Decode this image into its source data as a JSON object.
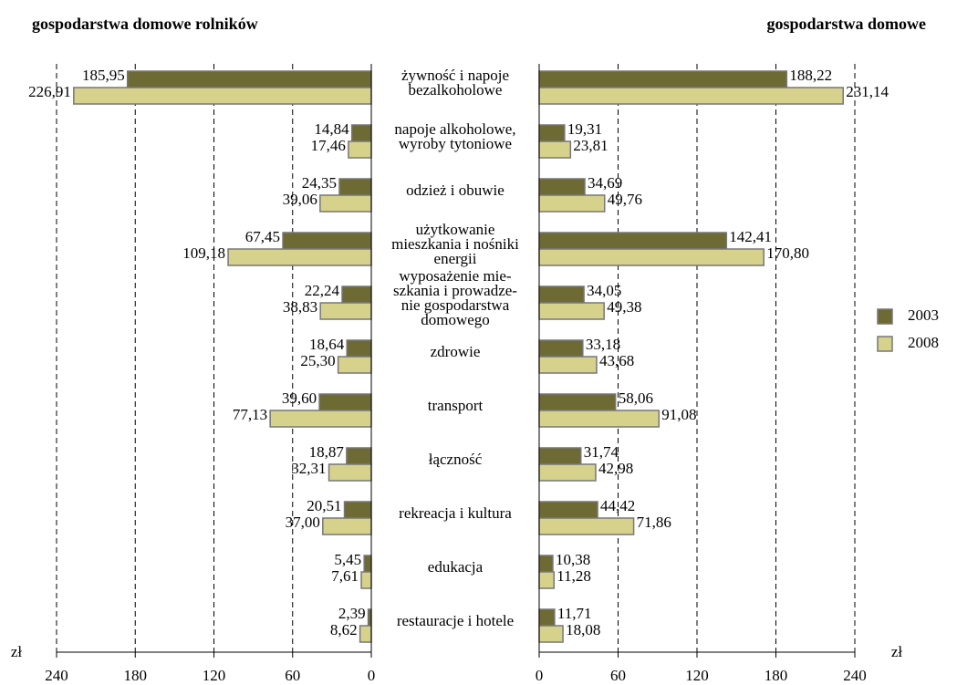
{
  "chart_data": {
    "type": "butterfly",
    "categories": [
      [
        "żywność i napoje",
        "bezalkoholowe"
      ],
      [
        "napoje alkoholowe,",
        "wyroby tytoniowe"
      ],
      [
        "odzież i obuwie"
      ],
      [
        "użytkowanie",
        "mieszkania i nośniki",
        "energii"
      ],
      [
        "wyposażenie mie-",
        "szkania i prowadze-",
        "nie gospodarstwa",
        "domowego"
      ],
      [
        "zdrowie"
      ],
      [
        "transport"
      ],
      [
        "łączność"
      ],
      [
        "rekreacja i kultura"
      ],
      [
        "edukacja"
      ],
      [
        "restauracje i hotele"
      ]
    ],
    "series": [
      {
        "name": "2003",
        "color": "#6e6a33"
      },
      {
        "name": "2008",
        "color": "#d6d28c"
      }
    ],
    "panels": [
      {
        "title": "gospodarstwa domowe rolników",
        "x_label": "zł",
        "xlim": [
          240,
          0
        ],
        "xticks": [
          240,
          180,
          120,
          60,
          0
        ],
        "series": [
          {
            "values": [
              185.95,
              14.84,
              24.35,
              67.45,
              22.24,
              18.64,
              39.6,
              18.87,
              20.51,
              5.45,
              2.39
            ],
            "value_labels": [
              "185,95",
              "14,84",
              "24,35",
              "67,45",
              "22,24",
              "18,64",
              "39,60",
              "18,87",
              "20,51",
              "5,45",
              "2,39"
            ]
          },
          {
            "values": [
              226.91,
              17.46,
              39.06,
              109.18,
              38.83,
              25.3,
              77.13,
              32.31,
              37.0,
              7.61,
              8.62
            ],
            "value_labels": [
              "226,91",
              "17,46",
              "39,06",
              "109,18",
              "38,83",
              "25,30",
              "77,13",
              "32,31",
              "37,00",
              "7,61",
              "8,62"
            ]
          }
        ]
      },
      {
        "title": "gospodarstwa domowe",
        "x_label": "zł",
        "xlim": [
          0,
          240
        ],
        "xticks": [
          0,
          60,
          120,
          180,
          240
        ],
        "series": [
          {
            "values": [
              188.22,
              19.31,
              34.69,
              142.41,
              34.05,
              33.18,
              58.06,
              31.74,
              44.42,
              10.38,
              11.71
            ],
            "value_labels": [
              "188,22",
              "19,31",
              "34,69",
              "142,41",
              "34,05",
              "33,18",
              "58,06",
              "31,74",
              "44,42",
              "10,38",
              "11,71"
            ]
          },
          {
            "values": [
              231.14,
              23.81,
              49.76,
              170.8,
              49.38,
              43.68,
              91.08,
              42.98,
              71.86,
              11.28,
              18.08
            ],
            "value_labels": [
              "231,14",
              "23,81",
              "49,76",
              "170,80",
              "49,38",
              "43,68",
              "91,08",
              "42,98",
              "71,86",
              "11,28",
              "18,08"
            ]
          }
        ]
      }
    ],
    "grid": true,
    "legend": "right"
  }
}
